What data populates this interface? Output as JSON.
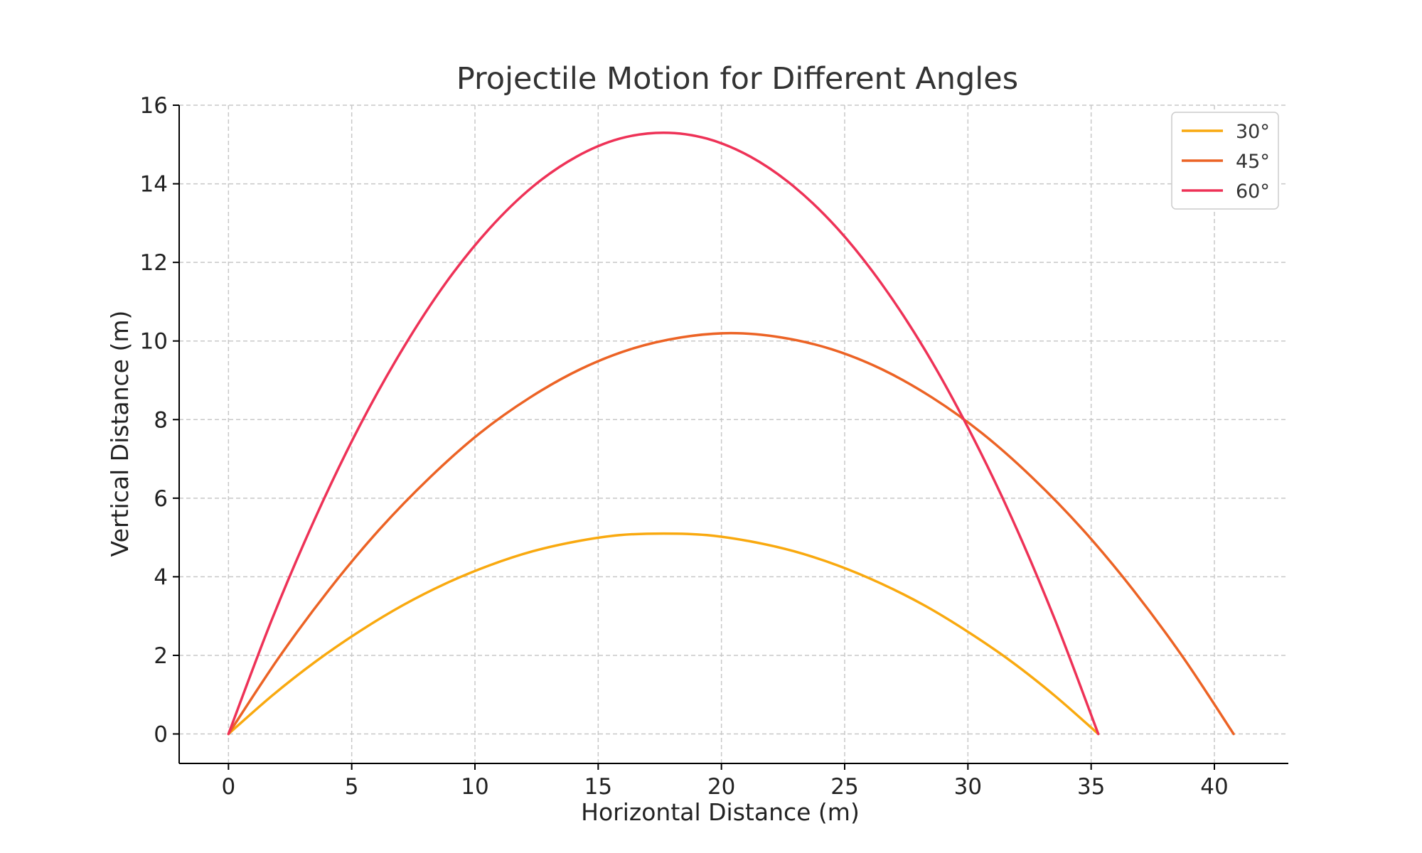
{
  "chart_data": {
    "type": "line",
    "title": "Projectile Motion for Different Angles",
    "xlabel": "Horizontal Distance (m)",
    "ylabel": "Vertical Distance (m)",
    "xlim": [
      -2,
      43
    ],
    "ylim": [
      -0.75,
      16
    ],
    "xticks": [
      0,
      5,
      10,
      15,
      20,
      25,
      30,
      35,
      40
    ],
    "yticks": [
      0,
      2,
      4,
      6,
      8,
      10,
      12,
      14,
      16
    ],
    "grid": true,
    "legend_position": "top-right",
    "series": [
      {
        "name": "30°",
        "color": "#f9a90f",
        "x": [
          0,
          1.76,
          3.53,
          5.29,
          7.06,
          8.82,
          10.59,
          12.35,
          14.12,
          15.88,
          17.65,
          19.41,
          21.18,
          22.94,
          24.71,
          26.47,
          28.24,
          30.0,
          31.77,
          33.53,
          35.29
        ],
        "y": [
          0,
          0.97,
          1.84,
          2.6,
          3.27,
          3.83,
          4.29,
          4.65,
          4.9,
          5.06,
          5.1,
          5.06,
          4.9,
          4.65,
          4.29,
          3.83,
          3.27,
          2.6,
          1.84,
          0.97,
          0
        ]
      },
      {
        "name": "45°",
        "color": "#ec6325",
        "x": [
          0,
          2.04,
          4.08,
          6.12,
          8.16,
          10.19,
          12.23,
          14.27,
          16.31,
          18.35,
          20.39,
          22.43,
          24.47,
          26.51,
          28.55,
          30.58,
          32.62,
          34.66,
          36.7,
          38.74,
          40.78
        ],
        "y": [
          0,
          1.94,
          3.67,
          5.2,
          6.52,
          7.65,
          8.56,
          9.28,
          9.79,
          10.09,
          10.2,
          10.09,
          9.79,
          9.28,
          8.56,
          7.65,
          6.52,
          5.2,
          3.67,
          1.94,
          0
        ]
      },
      {
        "name": "60°",
        "color": "#ee3257",
        "x": [
          0,
          1.76,
          3.53,
          5.29,
          7.06,
          8.82,
          10.59,
          12.35,
          14.12,
          15.88,
          17.65,
          19.41,
          21.18,
          22.94,
          24.71,
          26.47,
          28.24,
          30.0,
          31.77,
          33.53,
          35.29
        ],
        "y": [
          0,
          2.91,
          5.51,
          7.8,
          9.79,
          11.48,
          12.86,
          13.93,
          14.69,
          15.15,
          15.3,
          15.15,
          14.69,
          13.93,
          12.86,
          11.48,
          9.79,
          7.8,
          5.51,
          2.91,
          0
        ]
      }
    ]
  }
}
